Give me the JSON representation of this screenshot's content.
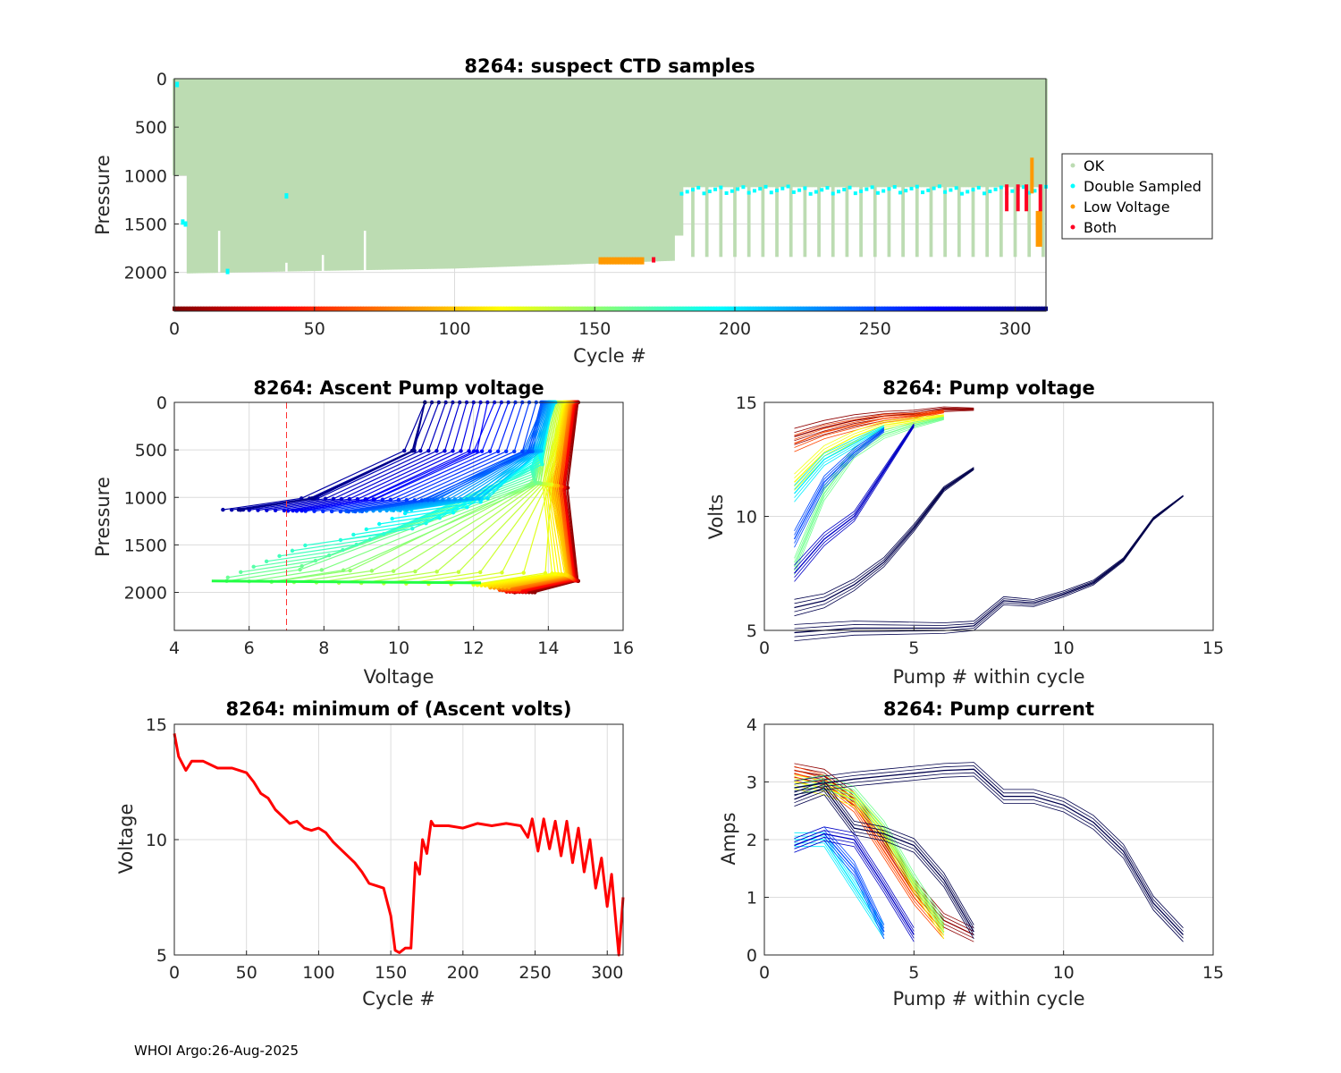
{
  "footer": "WHOI Argo:26-Aug-2025",
  "colors": {
    "ok": "#bcdcb2",
    "double": "#00ffff",
    "low": "#ff9900",
    "both": "#ff0022",
    "grid": "#dcdcdc",
    "dark": "#00004c"
  },
  "chart_data": [
    {
      "id": "suspect",
      "type": "scatter",
      "title": "8264: suspect CTD samples",
      "xlabel": "Cycle #",
      "ylabel": "Pressure",
      "xlim": [
        0,
        311
      ],
      "ylim": [
        0,
        2400
      ],
      "y_reversed": true,
      "xticks": [
        0,
        50,
        100,
        150,
        200,
        250,
        300
      ],
      "yticks": [
        0,
        500,
        1000,
        1500,
        2000
      ],
      "legend": {
        "position": "outside-right",
        "entries": [
          "OK",
          "Double Sampled",
          "Low Voltage",
          "Both"
        ]
      },
      "ok_profile_max_pressure": {
        "segments": [
          {
            "cycles": [
              5,
              40
            ],
            "pressure": [
              2010,
              1990
            ]
          },
          {
            "cycles": [
              40,
              100
            ],
            "pressure": [
              1990,
              1960
            ]
          },
          {
            "cycles": [
              100,
              178
            ],
            "pressure": [
              1960,
              1880
            ]
          },
          {
            "cycles": [
              179,
              181
            ],
            "pressure": [
              1620,
              1620
            ]
          }
        ],
        "park_depth_after_180": 1120,
        "deep_profile_every": 5,
        "deep_profile_pressure": 1840
      },
      "double_sampled_band": [
        1110,
        1190
      ],
      "low_voltage_cycles": [
        152,
        153,
        154,
        155,
        156,
        157,
        158,
        159,
        160,
        161,
        162,
        163,
        164,
        165,
        166,
        167,
        306,
        308,
        309
      ],
      "both_cycles": [
        171,
        297,
        301,
        304,
        309
      ]
    },
    {
      "id": "ascent",
      "type": "line",
      "title": "8264: Ascent Pump voltage",
      "xlabel": "Voltage",
      "ylabel": "Pressure",
      "xlim": [
        4,
        16
      ],
      "ylim": [
        0,
        2400
      ],
      "y_reversed": true,
      "xticks": [
        4,
        6,
        8,
        10,
        12,
        14,
        16
      ],
      "yticks": [
        0,
        500,
        1000,
        1500,
        2000
      ],
      "threshold_voltage": 7,
      "profiles": [
        {
          "cycle": 5,
          "v_bottom": 13.4,
          "v_top": 14.8,
          "p_bottom": 2000
        },
        {
          "cycle": 40,
          "v_bottom": 13.1,
          "v_top": 14.7,
          "p_bottom": 1990
        },
        {
          "cycle": 80,
          "v_bottom": 12.9,
          "v_top": 14.6,
          "p_bottom": 1960
        },
        {
          "cycle": 120,
          "v_bottom": 12.3,
          "v_top": 14.4,
          "p_bottom": 1920
        },
        {
          "cycle": 160,
          "v_bottom": 5.1,
          "v_top": 14.0,
          "p_bottom": 1880
        },
        {
          "cycle": 200,
          "v_bottom": 10.5,
          "v_top": 14.2,
          "p_bottom": 1130
        },
        {
          "cycle": 250,
          "v_bottom": 8.5,
          "v_top": 13.8,
          "p_bottom": 1150
        },
        {
          "cycle": 300,
          "v_bottom": 5.6,
          "v_top": 10.7,
          "p_bottom": 1130
        }
      ]
    },
    {
      "id": "pumpv",
      "type": "line",
      "title": "8264: Pump voltage",
      "xlabel": "Pump # within cycle",
      "ylabel": "Volts",
      "xlim": [
        0,
        15
      ],
      "ylim": [
        5,
        15
      ],
      "xticks": [
        0,
        5,
        10,
        15
      ],
      "yticks": [
        5,
        10,
        15
      ],
      "series": [
        {
          "cycle": 5,
          "x": [
            1,
            2,
            3,
            4,
            5,
            6,
            7
          ],
          "y": [
            13.5,
            13.9,
            14.2,
            14.4,
            14.5,
            14.7,
            14.7
          ]
        },
        {
          "cycle": 60,
          "x": [
            1,
            2,
            3,
            4,
            5,
            6
          ],
          "y": [
            13.2,
            13.7,
            14.0,
            14.3,
            14.4,
            14.6
          ]
        },
        {
          "cycle": 120,
          "x": [
            1,
            2,
            3,
            4,
            5,
            6
          ],
          "y": [
            11.5,
            12.8,
            13.5,
            14.0,
            14.2,
            14.4
          ]
        },
        {
          "cycle": 160,
          "x": [
            1,
            2,
            3,
            4,
            5,
            6
          ],
          "y": [
            7.8,
            11.0,
            12.8,
            13.6,
            14.0,
            14.3
          ]
        },
        {
          "cycle": 200,
          "x": [
            1,
            2,
            3,
            4
          ],
          "y": [
            11.0,
            12.5,
            13.2,
            13.9
          ]
        },
        {
          "cycle": 250,
          "x": [
            1,
            2,
            3,
            4
          ],
          "y": [
            9.0,
            11.5,
            12.8,
            13.8
          ]
        },
        {
          "cycle": 290,
          "x": [
            1,
            2,
            3,
            4,
            5
          ],
          "y": [
            7.5,
            9.0,
            10.0,
            12.0,
            14.0
          ]
        },
        {
          "cycle": 305,
          "x": [
            1,
            2,
            3,
            4,
            5,
            6,
            7
          ],
          "y": [
            6.0,
            6.3,
            7.0,
            8.0,
            9.5,
            11.2,
            12.1
          ]
        },
        {
          "cycle": 311,
          "x": [
            1,
            2,
            3,
            4,
            5,
            6,
            7,
            8,
            9,
            10,
            11,
            12,
            13,
            14
          ],
          "y": [
            4.9,
            5.0,
            5.1,
            5.1,
            5.1,
            5.1,
            5.2,
            6.3,
            6.2,
            6.6,
            7.1,
            8.1,
            9.9,
            10.9
          ]
        }
      ]
    },
    {
      "id": "minv",
      "type": "line",
      "title": "8264: minimum of (Ascent volts)",
      "xlabel": "Cycle #",
      "ylabel": "Voltage",
      "xlim": [
        0,
        311
      ],
      "ylim": [
        5,
        15
      ],
      "xticks": [
        0,
        50,
        100,
        150,
        200,
        250,
        300
      ],
      "yticks": [
        5,
        10,
        15
      ],
      "color": "#ff0000",
      "x": [
        0,
        3,
        8,
        12,
        20,
        30,
        40,
        45,
        50,
        55,
        60,
        65,
        70,
        75,
        80,
        85,
        90,
        95,
        100,
        105,
        110,
        115,
        120,
        125,
        130,
        135,
        140,
        145,
        150,
        153,
        156,
        160,
        164,
        167,
        170,
        172,
        175,
        178,
        180,
        190,
        200,
        210,
        220,
        230,
        240,
        245,
        248,
        252,
        256,
        260,
        264,
        268,
        272,
        276,
        280,
        284,
        288,
        292,
        296,
        300,
        303,
        306,
        308,
        311
      ],
      "y": [
        14.6,
        13.6,
        13.0,
        13.4,
        13.4,
        13.1,
        13.1,
        13.0,
        12.9,
        12.5,
        12.0,
        11.8,
        11.3,
        11.0,
        10.7,
        10.8,
        10.5,
        10.4,
        10.5,
        10.3,
        9.9,
        9.6,
        9.3,
        9.0,
        8.6,
        8.1,
        8.0,
        7.9,
        6.7,
        5.2,
        5.1,
        5.3,
        5.3,
        9.0,
        8.5,
        10.0,
        9.4,
        10.8,
        10.6,
        10.6,
        10.5,
        10.7,
        10.6,
        10.7,
        10.6,
        10.1,
        10.9,
        9.5,
        10.9,
        9.6,
        10.8,
        9.3,
        10.8,
        9.0,
        10.5,
        8.6,
        10.0,
        7.9,
        9.2,
        7.1,
        8.5,
        6.4,
        5.0,
        7.5
      ]
    },
    {
      "id": "pumpc",
      "type": "line",
      "title": "8264: Pump current",
      "xlabel": "Pump # within cycle",
      "ylabel": "Amps",
      "xlim": [
        0,
        15
      ],
      "ylim": [
        0,
        4
      ],
      "xticks": [
        0,
        5,
        10,
        15
      ],
      "yticks": [
        0,
        1,
        2,
        3,
        4
      ],
      "series": [
        {
          "cycle": 5,
          "x": [
            1,
            2,
            3,
            4,
            5,
            6,
            7
          ],
          "y": [
            3.2,
            3.1,
            2.7,
            2.0,
            1.2,
            0.6,
            0.35
          ]
        },
        {
          "cycle": 60,
          "x": [
            1,
            2,
            3,
            4,
            5,
            6
          ],
          "y": [
            3.15,
            3.0,
            2.6,
            1.8,
            1.0,
            0.4
          ]
        },
        {
          "cycle": 120,
          "x": [
            1,
            2,
            3,
            4,
            5,
            6
          ],
          "y": [
            3.0,
            2.9,
            2.7,
            2.1,
            1.2,
            0.4
          ]
        },
        {
          "cycle": 160,
          "x": [
            1,
            2,
            3,
            4,
            5,
            6
          ],
          "y": [
            2.9,
            3.0,
            2.8,
            2.2,
            1.3,
            0.5
          ]
        },
        {
          "cycle": 200,
          "x": [
            1,
            2,
            3,
            4
          ],
          "y": [
            2.0,
            2.0,
            1.2,
            0.4
          ]
        },
        {
          "cycle": 250,
          "x": [
            1,
            2,
            3,
            4
          ],
          "y": [
            1.9,
            2.1,
            1.5,
            0.4
          ]
        },
        {
          "cycle": 290,
          "x": [
            1,
            2,
            3,
            4,
            5
          ],
          "y": [
            1.9,
            2.1,
            2.0,
            1.2,
            0.35
          ]
        },
        {
          "cycle": 305,
          "x": [
            1,
            2,
            3,
            4,
            5,
            6,
            7
          ],
          "y": [
            2.7,
            2.9,
            2.2,
            2.1,
            1.9,
            1.3,
            0.4
          ]
        },
        {
          "cycle": 311,
          "x": [
            1,
            2,
            3,
            4,
            5,
            6,
            7,
            8,
            9,
            10,
            11,
            12,
            13,
            14
          ],
          "y": [
            2.9,
            2.98,
            3.05,
            3.1,
            3.15,
            3.2,
            3.22,
            2.75,
            2.75,
            2.6,
            2.3,
            1.8,
            0.9,
            0.35
          ]
        }
      ]
    }
  ]
}
